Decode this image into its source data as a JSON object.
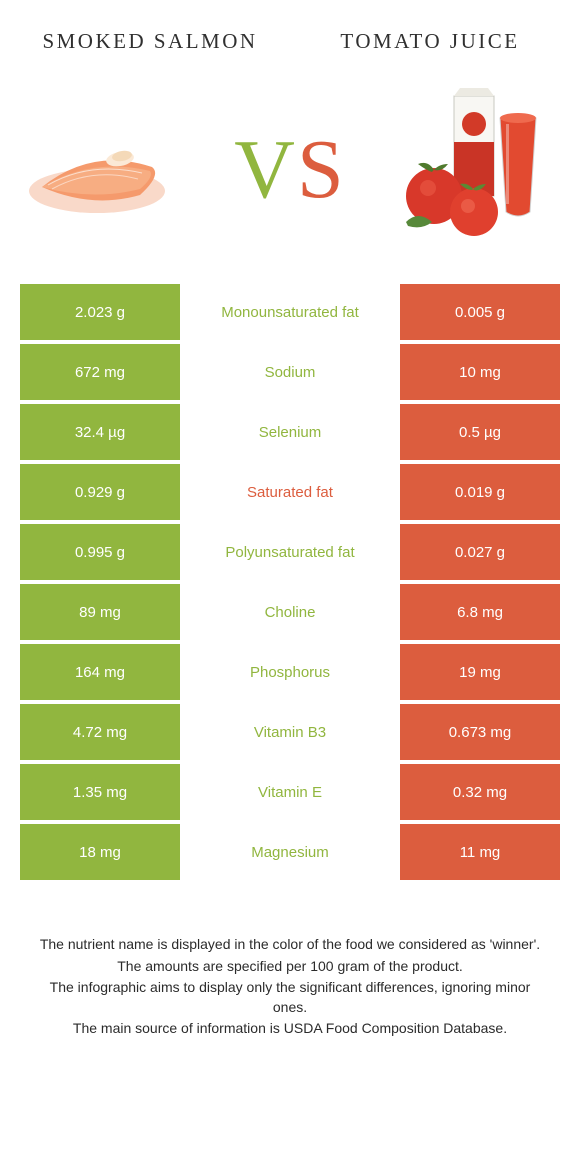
{
  "colors": {
    "left_bg": "#91b63f",
    "right_bg": "#dc5d3e",
    "label_left": "#91b63f",
    "label_right": "#dc5d3e",
    "cell_text": "#ffffff"
  },
  "header": {
    "left_title": "SMOKED SALMON",
    "right_title": "TOMATO JUICE"
  },
  "vs": {
    "v": "V",
    "s": "S"
  },
  "rows": [
    {
      "left": "2.023 g",
      "label": "Monounsaturated fat",
      "right": "0.005 g",
      "winner": "left"
    },
    {
      "left": "672 mg",
      "label": "Sodium",
      "right": "10 mg",
      "winner": "left"
    },
    {
      "left": "32.4 µg",
      "label": "Selenium",
      "right": "0.5 µg",
      "winner": "left"
    },
    {
      "left": "0.929 g",
      "label": "Saturated fat",
      "right": "0.019 g",
      "winner": "right"
    },
    {
      "left": "0.995 g",
      "label": "Polyunsaturated fat",
      "right": "0.027 g",
      "winner": "left"
    },
    {
      "left": "89 mg",
      "label": "Choline",
      "right": "6.8 mg",
      "winner": "left"
    },
    {
      "left": "164 mg",
      "label": "Phosphorus",
      "right": "19 mg",
      "winner": "left"
    },
    {
      "left": "4.72 mg",
      "label": "Vitamin B3",
      "right": "0.673 mg",
      "winner": "left"
    },
    {
      "left": "1.35 mg",
      "label": "Vitamin E",
      "right": "0.32 mg",
      "winner": "left"
    },
    {
      "left": "18 mg",
      "label": "Magnesium",
      "right": "11 mg",
      "winner": "left"
    }
  ],
  "footer": {
    "l1": "The nutrient name is displayed in the color of the food we considered as 'winner'.",
    "l2": "The amounts are specified per 100 gram of the product.",
    "l3": "The infographic aims to display only the significant differences, ignoring minor ones.",
    "l4": "The main source of information is USDA Food Composition Database."
  }
}
